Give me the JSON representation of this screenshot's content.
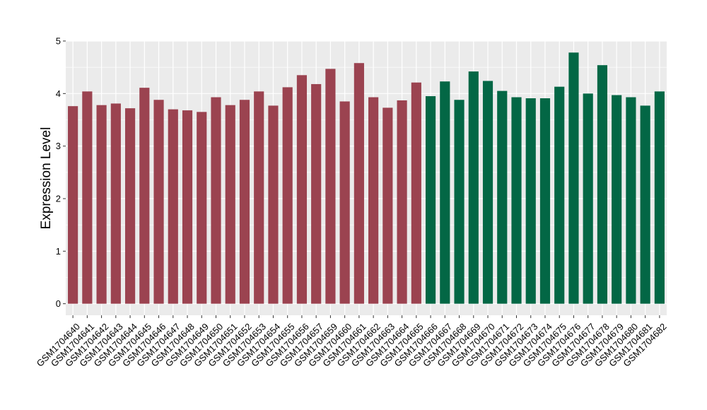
{
  "chart_data": {
    "type": "bar",
    "xlabel": "",
    "ylabel": "Expression Level",
    "ylim": [
      -0.22,
      5
    ],
    "yticks": [
      0,
      1,
      2,
      3,
      4,
      5
    ],
    "grid": true,
    "legend": "none",
    "colors": {
      "group_a": "#9b4350",
      "group_b": "#036745",
      "panel_bg": "#ebebeb",
      "grid": "#ffffff"
    },
    "categories": [
      "GSM1704640",
      "GSM1704641",
      "GSM1704642",
      "GSM1704643",
      "GSM1704644",
      "GSM1704645",
      "GSM1704646",
      "GSM1704647",
      "GSM1704648",
      "GSM1704649",
      "GSM1704650",
      "GSM1704651",
      "GSM1704652",
      "GSM1704653",
      "GSM1704654",
      "GSM1704655",
      "GSM1704656",
      "GSM1704657",
      "GSM1704659",
      "GSM1704660",
      "GSM1704661",
      "GSM1704662",
      "GSM1704663",
      "GSM1704664",
      "GSM1704665",
      "GSM1704666",
      "GSM1704667",
      "GSM1704668",
      "GSM1704669",
      "GSM1704670",
      "GSM1704671",
      "GSM1704672",
      "GSM1704673",
      "GSM1704674",
      "GSM1704675",
      "GSM1704676",
      "GSM1704677",
      "GSM1704678",
      "GSM1704679",
      "GSM1704680",
      "GSM1704681",
      "GSM1704682"
    ],
    "values": [
      3.76,
      4.04,
      3.78,
      3.81,
      3.72,
      4.11,
      3.88,
      3.7,
      3.68,
      3.65,
      3.93,
      3.78,
      3.88,
      4.04,
      3.77,
      4.12,
      4.35,
      4.18,
      4.47,
      3.85,
      4.58,
      3.93,
      3.73,
      3.87,
      4.21,
      3.95,
      4.23,
      3.88,
      4.42,
      4.24,
      4.05,
      3.93,
      3.91,
      3.91,
      4.13,
      4.78,
      4.0,
      4.54,
      3.97,
      3.93,
      3.77,
      4.04
    ],
    "bar_colors": [
      "#9b4350",
      "#9b4350",
      "#9b4350",
      "#9b4350",
      "#9b4350",
      "#9b4350",
      "#9b4350",
      "#9b4350",
      "#9b4350",
      "#9b4350",
      "#9b4350",
      "#9b4350",
      "#9b4350",
      "#9b4350",
      "#9b4350",
      "#9b4350",
      "#9b4350",
      "#9b4350",
      "#9b4350",
      "#9b4350",
      "#9b4350",
      "#9b4350",
      "#9b4350",
      "#9b4350",
      "#9b4350",
      "#036745",
      "#036745",
      "#036745",
      "#036745",
      "#036745",
      "#036745",
      "#036745",
      "#036745",
      "#036745",
      "#036745",
      "#036745",
      "#036745",
      "#036745",
      "#036745",
      "#036745",
      "#036745",
      "#036745"
    ]
  }
}
